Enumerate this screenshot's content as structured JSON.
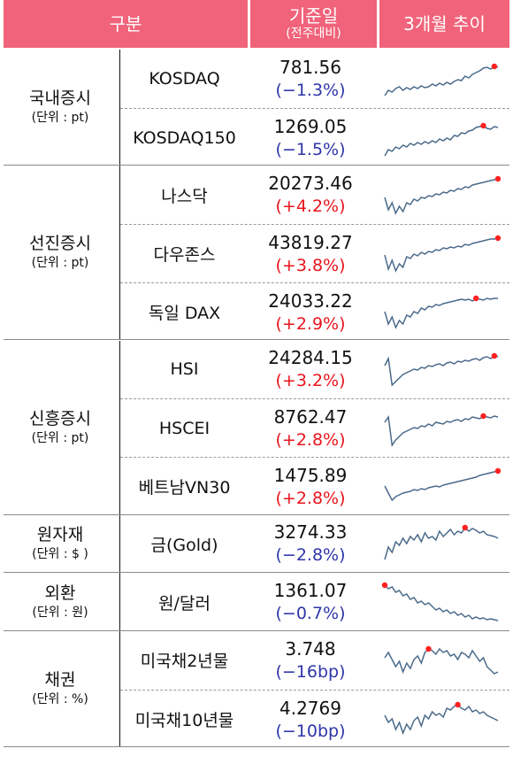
{
  "header": {
    "category": "구분",
    "date_title": "기준일",
    "date_sub": "(전주대비)",
    "trend": "3개월 추이"
  },
  "colors": {
    "header_bg": "#f0637a",
    "down": "#2e36a8",
    "up": "#e8141c",
    "line": "#4a6a8a",
    "marker": "#ff2020"
  },
  "groups": [
    {
      "name": "국내증시",
      "unit": "(단위 : pt)",
      "items": [
        {
          "name": "KOSDAQ",
          "value": "781.56",
          "change": "(−1.3%)",
          "dir": "down",
          "trend": [
            46,
            40,
            42,
            38,
            36,
            40,
            37,
            39,
            36,
            38,
            35,
            37,
            36,
            33,
            35,
            32,
            34,
            31,
            33,
            30,
            28,
            29,
            24,
            26,
            22,
            20,
            18,
            15,
            14,
            16,
            13,
            14
          ]
        },
        {
          "name": "KOSDAQ150",
          "value": "1269.05",
          "change": "(−1.5%)",
          "dir": "down",
          "trend": [
            47,
            40,
            42,
            37,
            39,
            35,
            37,
            33,
            35,
            32,
            34,
            31,
            33,
            30,
            32,
            28,
            30,
            27,
            29,
            24,
            25,
            21,
            22,
            19,
            18,
            15,
            14,
            13,
            16,
            17,
            14,
            15
          ]
        }
      ]
    },
    {
      "name": "선진증시",
      "unit": "(단위 : pt)",
      "items": [
        {
          "name": "나스닥",
          "value": "20273.46",
          "change": "(+4.2%)",
          "dir": "up",
          "trend": [
            30,
            44,
            36,
            48,
            40,
            46,
            36,
            38,
            32,
            34,
            30,
            31,
            28,
            29,
            26,
            27,
            24,
            25,
            22,
            23,
            20,
            21,
            18,
            19,
            16,
            15,
            14,
            13,
            12,
            11,
            10,
            9
          ]
        },
        {
          "name": "다우존스",
          "value": "43819.27",
          "change": "(+3.8%)",
          "dir": "up",
          "trend": [
            28,
            44,
            34,
            46,
            38,
            42,
            30,
            32,
            27,
            29,
            25,
            27,
            24,
            25,
            22,
            23,
            20,
            21,
            19,
            20,
            18,
            19,
            16,
            17,
            15,
            14,
            13,
            12,
            11,
            10,
            10,
            9
          ]
        },
        {
          "name": "독일 DAX",
          "value": "24033.22",
          "change": "(+2.9%)",
          "dir": "up",
          "trend": [
            26,
            40,
            32,
            44,
            36,
            40,
            30,
            32,
            26,
            28,
            22,
            24,
            20,
            21,
            18,
            19,
            17,
            16,
            15,
            14,
            13,
            12,
            13,
            12,
            14,
            11,
            12,
            13,
            11,
            12,
            11,
            11
          ]
        }
      ]
    },
    {
      "name": "신흥증시",
      "unit": "(단위 : pt)",
      "items": [
        {
          "name": "HSI",
          "value": "24284.15",
          "change": "(+3.2%)",
          "dir": "up",
          "trend": [
            22,
            14,
            44,
            40,
            36,
            32,
            30,
            28,
            26,
            27,
            24,
            25,
            22,
            23,
            21,
            20,
            22,
            19,
            18,
            20,
            17,
            18,
            16,
            17,
            15,
            14,
            16,
            13,
            12,
            14,
            11,
            12
          ]
        },
        {
          "name": "HSCEI",
          "value": "8762.47",
          "change": "(+2.8%)",
          "dir": "up",
          "trend": [
            20,
            14,
            46,
            40,
            36,
            32,
            30,
            28,
            26,
            27,
            24,
            25,
            22,
            24,
            20,
            21,
            22,
            19,
            20,
            18,
            17,
            19,
            16,
            17,
            14,
            15,
            16,
            13,
            14,
            15,
            13,
            14
          ]
        },
        {
          "name": "베트남VN30",
          "value": "1475.89",
          "change": "(+2.8%)",
          "dir": "up",
          "trend": [
            26,
            34,
            42,
            38,
            36,
            34,
            33,
            32,
            30,
            31,
            29,
            30,
            28,
            27,
            26,
            27,
            25,
            24,
            23,
            22,
            21,
            20,
            19,
            18,
            17,
            16,
            14,
            13,
            12,
            11,
            10,
            9
          ]
        }
      ]
    },
    {
      "name": "원자재",
      "unit": "(단위 : $ )",
      "items": [
        {
          "name": "금(Gold)",
          "value": "3274.33",
          "change": "(−2.8%)",
          "dir": "down",
          "trend": [
            44,
            30,
            36,
            24,
            28,
            20,
            26,
            18,
            22,
            16,
            24,
            14,
            20,
            18,
            22,
            12,
            18,
            14,
            10,
            16,
            12,
            14,
            8,
            12,
            9,
            11,
            14,
            12,
            16,
            17,
            18,
            20
          ]
        }
      ]
    },
    {
      "name": "외환",
      "unit": "(단위 : 원)",
      "items": [
        {
          "name": "원/달러",
          "value": "1361.07",
          "change": "(−0.7%)",
          "dir": "down",
          "trend": [
            8,
            12,
            10,
            16,
            14,
            20,
            18,
            24,
            22,
            28,
            26,
            30,
            28,
            32,
            36,
            34,
            38,
            36,
            40,
            38,
            42,
            40,
            44,
            42,
            46,
            44,
            46,
            45,
            47,
            46,
            47,
            48
          ]
        }
      ]
    },
    {
      "name": "채권",
      "unit": "(단위 : %)",
      "items": [
        {
          "name": "미국채2년물",
          "value": "3.748",
          "change": "(−16bp)",
          "dir": "down",
          "trend": [
            24,
            18,
            26,
            34,
            28,
            40,
            30,
            36,
            26,
            22,
            30,
            18,
            14,
            16,
            20,
            14,
            18,
            16,
            22,
            20,
            26,
            18,
            20,
            24,
            16,
            22,
            28,
            24,
            34,
            38,
            42,
            40
          ]
        },
        {
          "name": "미국채10년물",
          "value": "4.2769",
          "change": "(−10bp)",
          "dir": "down",
          "trend": [
            22,
            30,
            26,
            38,
            30,
            42,
            32,
            38,
            28,
            24,
            34,
            22,
            26,
            18,
            22,
            20,
            24,
            14,
            16,
            12,
            10,
            14,
            16,
            12,
            18,
            16,
            20,
            18,
            22,
            24,
            26,
            28
          ]
        }
      ]
    }
  ]
}
